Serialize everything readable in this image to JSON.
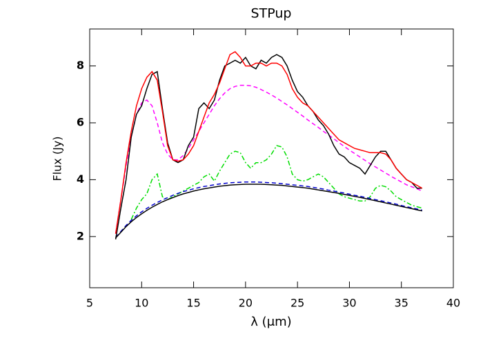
{
  "chart_data": {
    "type": "line",
    "title": "STPup",
    "x_label": "λ (μm)",
    "y_label": "Flux (Jy)",
    "xlim": [
      5,
      40
    ],
    "ylim": [
      0.2,
      9.3
    ],
    "xticks": [
      5,
      10,
      15,
      20,
      25,
      30,
      35,
      40
    ],
    "yticks": [
      2,
      4,
      6,
      8
    ],
    "x": [
      7.5,
      8,
      8.5,
      9,
      9.5,
      10,
      10.5,
      11,
      11.5,
      12,
      12.5,
      13,
      13.5,
      14,
      14.5,
      15,
      15.5,
      16,
      16.5,
      17,
      17.5,
      18,
      18.5,
      19,
      19.5,
      20,
      20.5,
      21,
      21.5,
      22,
      22.5,
      23,
      23.5,
      24,
      24.5,
      25,
      25.5,
      26,
      26.5,
      27,
      27.5,
      28,
      28.5,
      29,
      29.5,
      30,
      30.5,
      31,
      31.5,
      32,
      32.5,
      33,
      33.5,
      34,
      34.5,
      35,
      35.5,
      36,
      36.5,
      37
    ],
    "series": [
      {
        "color": "#00dd00",
        "dash": "dashdot",
        "values": [
          null,
          null,
          null,
          2.6,
          3.0,
          3.3,
          3.5,
          4.0,
          4.2,
          3.4,
          3.3,
          3.4,
          3.5,
          3.6,
          3.7,
          3.8,
          3.9,
          4.1,
          4.2,
          3.95,
          4.3,
          4.6,
          4.9,
          5.0,
          4.95,
          4.6,
          4.4,
          4.6,
          4.6,
          4.7,
          4.9,
          5.2,
          5.15,
          4.8,
          4.2,
          4.0,
          3.95,
          4.0,
          4.1,
          4.2,
          4.1,
          3.9,
          3.7,
          3.5,
          3.4,
          3.35,
          3.3,
          3.25,
          3.25,
          3.4,
          3.7,
          3.8,
          3.75,
          3.6,
          3.4,
          3.3,
          3.2,
          3.1,
          3.05,
          3.0
        ]
      },
      {
        "color": "#ff00ff",
        "dash": "dashed",
        "values": [
          2.1,
          3.3,
          4.5,
          5.5,
          6.3,
          6.7,
          6.8,
          6.6,
          6.0,
          5.3,
          4.9,
          4.7,
          4.7,
          4.85,
          5.1,
          5.4,
          5.7,
          6.0,
          6.3,
          6.6,
          6.85,
          7.05,
          7.2,
          7.28,
          7.32,
          7.32,
          7.3,
          7.25,
          7.17,
          7.08,
          6.98,
          6.87,
          6.75,
          6.63,
          6.5,
          6.37,
          6.24,
          6.1,
          5.97,
          5.84,
          5.7,
          5.57,
          5.44,
          5.3,
          5.17,
          5.04,
          4.92,
          4.8,
          4.68,
          4.56,
          4.45,
          4.34,
          4.23,
          4.12,
          4.02,
          3.92,
          3.82,
          3.75,
          3.68,
          3.6
        ]
      },
      {
        "color": "#0000cc",
        "dash": "dashed",
        "values": [
          1.97,
          2.18,
          2.39,
          2.57,
          2.73,
          2.87,
          2.99,
          3.1,
          3.2,
          3.29,
          3.37,
          3.45,
          3.52,
          3.58,
          3.63,
          3.68,
          3.72,
          3.76,
          3.79,
          3.82,
          3.85,
          3.87,
          3.89,
          3.9,
          3.91,
          3.92,
          3.92,
          3.92,
          3.91,
          3.9,
          3.89,
          3.88,
          3.86,
          3.84,
          3.82,
          3.8,
          3.78,
          3.76,
          3.73,
          3.7,
          3.67,
          3.63,
          3.6,
          3.56,
          3.53,
          3.49,
          3.45,
          3.42,
          3.38,
          3.34,
          3.3,
          3.26,
          3.22,
          3.18,
          3.14,
          3.09,
          3.05,
          3.01,
          2.97,
          2.93
        ]
      },
      {
        "color": "#000000",
        "dash": "solid",
        "values": [
          1.95,
          2.15,
          2.35,
          2.52,
          2.67,
          2.8,
          2.92,
          3.03,
          3.13,
          3.22,
          3.3,
          3.37,
          3.44,
          3.5,
          3.55,
          3.6,
          3.64,
          3.68,
          3.71,
          3.74,
          3.77,
          3.79,
          3.81,
          3.82,
          3.83,
          3.84,
          3.84,
          3.84,
          3.84,
          3.83,
          3.82,
          3.81,
          3.8,
          3.78,
          3.76,
          3.74,
          3.72,
          3.7,
          3.67,
          3.64,
          3.61,
          3.58,
          3.55,
          3.52,
          3.48,
          3.45,
          3.41,
          3.38,
          3.34,
          3.3,
          3.26,
          3.22,
          3.18,
          3.14,
          3.1,
          3.06,
          3.02,
          2.98,
          2.94,
          2.9
        ]
      },
      {
        "color": "#000000",
        "dash": "solid",
        "values": [
          1.9,
          3.0,
          4.0,
          5.5,
          6.3,
          6.6,
          7.2,
          7.7,
          7.8,
          6.5,
          5.3,
          4.7,
          4.6,
          4.7,
          5.2,
          5.5,
          6.5,
          6.7,
          6.5,
          6.8,
          7.5,
          8.0,
          8.1,
          8.2,
          8.1,
          8.3,
          8.0,
          7.9,
          8.2,
          8.1,
          8.3,
          8.4,
          8.3,
          8.0,
          7.5,
          7.1,
          6.9,
          6.6,
          6.4,
          6.1,
          5.9,
          5.6,
          5.2,
          4.9,
          4.8,
          4.6,
          4.5,
          4.4,
          4.2,
          4.5,
          4.8,
          5.0,
          5.0,
          4.7,
          4.4,
          4.2,
          4.0,
          3.9,
          3.7,
          3.7
        ]
      },
      {
        "color": "#ff0000",
        "dash": "solid",
        "values": [
          2.1,
          3.3,
          4.6,
          5.7,
          6.6,
          7.2,
          7.6,
          7.8,
          7.5,
          6.4,
          5.2,
          4.7,
          4.65,
          4.7,
          4.9,
          5.2,
          5.7,
          6.2,
          6.7,
          7.0,
          7.4,
          7.9,
          8.4,
          8.5,
          8.3,
          8.0,
          8.0,
          8.1,
          8.1,
          8.0,
          8.1,
          8.1,
          8.0,
          7.7,
          7.2,
          6.9,
          6.7,
          6.6,
          6.4,
          6.2,
          6.0,
          5.8,
          5.6,
          5.4,
          5.3,
          5.2,
          5.1,
          5.05,
          5.0,
          4.95,
          4.95,
          4.95,
          4.9,
          4.7,
          4.4,
          4.2,
          4.0,
          3.9,
          3.8,
          3.7
        ]
      }
    ]
  }
}
